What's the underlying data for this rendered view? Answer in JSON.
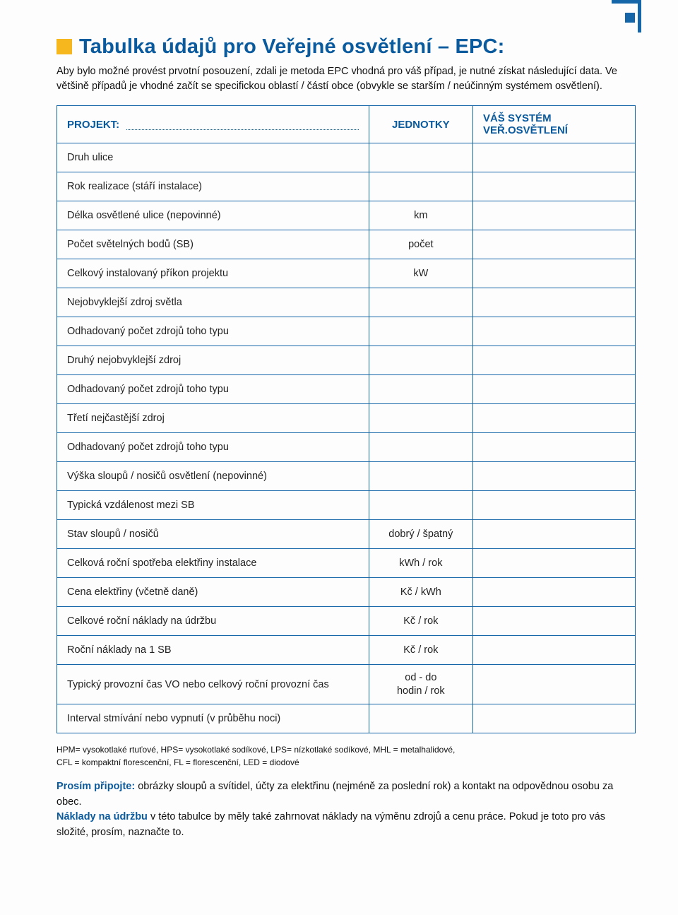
{
  "decor": {
    "blue": "#1565a9",
    "yellow": "#f6b61e"
  },
  "title": "Tabulka údajů pro Veřejné osvětlení – EPC:",
  "intro": "Aby bylo možné provést prvotní posouzení, zdali je metoda EPC vhodná pro váš případ, je nutné získat následující data. Ve většině případů je vhodné začít se specifickou oblastí / částí obce (obvykle se starším / neúčinným systémem osvětlení).",
  "header": {
    "c1": "PROJEKT:",
    "c2": "JEDNOTKY",
    "c3": "VÁŠ SYSTÉM VEŘ.OSVĚTLENÍ"
  },
  "rows": [
    {
      "label": "Druh ulice",
      "unit": ""
    },
    {
      "label": "Rok realizace (stáří instalace)",
      "unit": ""
    },
    {
      "label": "Délka osvětlené ulice (nepovinné)",
      "unit": "km"
    },
    {
      "label": "Počet světelných bodů (SB)",
      "unit": "počet"
    },
    {
      "label": "Celkový instalovaný příkon projektu",
      "unit": "kW"
    },
    {
      "label": "Nejobvyklejší zdroj světla",
      "unit": ""
    },
    {
      "label": "Odhadovaný počet zdrojů toho typu",
      "unit": ""
    },
    {
      "label": "Druhý nejobvyklejší zdroj",
      "unit": ""
    },
    {
      "label": "Odhadovaný počet zdrojů toho typu",
      "unit": ""
    },
    {
      "label": "Třetí nejčastější zdroj",
      "unit": ""
    },
    {
      "label": "Odhadovaný počet zdrojů toho typu",
      "unit": ""
    },
    {
      "label": "Výška sloupů / nosičů osvětlení (nepovinné)",
      "unit": ""
    },
    {
      "label": "Typická vzdálenost mezi SB",
      "unit": ""
    },
    {
      "label": "Stav sloupů / nosičů",
      "unit": "dobrý / špatný"
    },
    {
      "label": "Celková roční spotřeba elektřiny instalace",
      "unit": "kWh / rok"
    },
    {
      "label": "Cena elektřiny  (včetně daně)",
      "unit": "Kč / kWh"
    },
    {
      "label": "Celkové roční náklady na údržbu",
      "unit": "Kč / rok"
    },
    {
      "label": "Roční náklady na 1 SB",
      "unit": "Kč / rok"
    },
    {
      "label": "Typický provozní čas VO nebo celkový roční provozní čas",
      "unit": "od - do\nhodin / rok"
    },
    {
      "label": "Interval stmívání nebo vypnutí (v průběhu noci)",
      "unit": ""
    }
  ],
  "footnotes": {
    "line1": "HPM= vysokotlaké rtuťové, HPS= vysokotlaké sodíkové, LPS= nízkotlaké sodíkové, MHL = metalhalidové,",
    "line2": "CFL = kompaktní florescenční, FL = florescenční, LED = diodové"
  },
  "attach": {
    "label1": "Prosím připojte:",
    "text1": " obrázky sloupů a svítidel, účty za elektřinu (nejméně za poslední rok) a kontakt na odpovědnou osobu za obec.",
    "label2": "Náklady na údržbu",
    "text2": " v této tabulce by měly také zahrnovat náklady na výměnu zdrojů a cenu práce. Pokud je toto pro vás složité, prosím, naznačte to."
  }
}
